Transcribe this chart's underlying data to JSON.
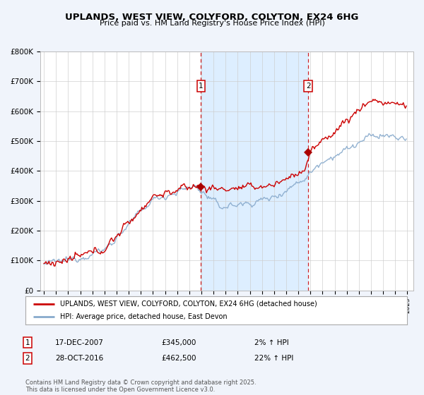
{
  "title": "UPLANDS, WEST VIEW, COLYFORD, COLYTON, EX24 6HG",
  "subtitle": "Price paid vs. HM Land Registry's House Price Index (HPI)",
  "background_color": "#f0f4fb",
  "plot_bg_color": "#ffffff",
  "shaded_region": [
    2007.97,
    2016.83
  ],
  "shaded_color": "#ddeeff",
  "sale1_x": 2007.97,
  "sale1_y": 345000,
  "sale2_x": 2016.83,
  "sale2_y": 462500,
  "marker_color": "#aa0000",
  "hpi_color": "#88aacc",
  "price_color": "#cc0000",
  "vline_color": "#cc0000",
  "ylim": [
    0,
    800000
  ],
  "xlim": [
    1994.7,
    2025.5
  ],
  "legend_label_red": "UPLANDS, WEST VIEW, COLYFORD, COLYTON, EX24 6HG (detached house)",
  "legend_label_blue": "HPI: Average price, detached house, East Devon",
  "annotation1_date": "17-DEC-2007",
  "annotation1_price": "£345,000",
  "annotation1_hpi": "2% ↑ HPI",
  "annotation2_date": "28-OCT-2016",
  "annotation2_price": "£462,500",
  "annotation2_hpi": "22% ↑ HPI",
  "footer": "Contains HM Land Registry data © Crown copyright and database right 2025.\nThis data is licensed under the Open Government Licence v3.0.",
  "yticks": [
    0,
    100000,
    200000,
    300000,
    400000,
    500000,
    600000,
    700000,
    800000
  ],
  "ytick_labels": [
    "£0",
    "£100K",
    "£200K",
    "£300K",
    "£400K",
    "£500K",
    "£600K",
    "£700K",
    "£800K"
  ]
}
